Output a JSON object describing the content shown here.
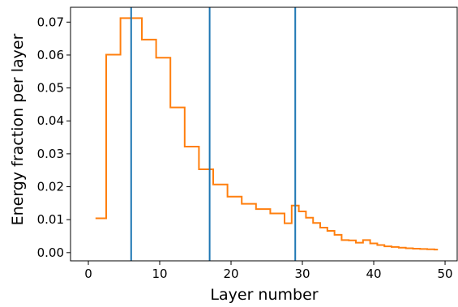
{
  "chart_data": {
    "type": "line",
    "title": "",
    "xlabel": "Layer number",
    "ylabel": "Energy fraction per layer",
    "xlim": [
      -2.5,
      51.7
    ],
    "ylim": [
      -0.0025,
      0.0745
    ],
    "xticks": [
      0,
      10,
      20,
      30,
      40,
      50
    ],
    "xtick_labels": [
      "0",
      "10",
      "20",
      "30",
      "40",
      "50"
    ],
    "yticks": [
      0.0,
      0.01,
      0.02,
      0.03,
      0.04,
      0.05,
      0.06,
      0.07
    ],
    "ytick_labels": [
      "0.00",
      "0.01",
      "0.02",
      "0.03",
      "0.04",
      "0.05",
      "0.06",
      "0.07"
    ],
    "grid": false,
    "series": [
      {
        "color": "#ff7f0e",
        "step": "mid",
        "x": [
          1,
          2,
          3,
          4,
          5,
          6,
          7,
          8,
          9,
          10,
          11,
          12,
          13,
          14,
          15,
          16,
          17,
          18,
          19,
          20,
          21,
          22,
          23,
          24,
          25,
          26,
          27,
          28,
          29,
          30,
          31,
          32,
          33,
          34,
          35,
          36,
          37,
          38,
          39,
          40,
          41,
          42,
          43,
          44,
          45,
          46,
          47,
          48,
          49
        ],
        "y": [
          0.0104,
          0.0104,
          0.0601,
          0.0601,
          0.0712,
          0.0712,
          0.0712,
          0.0647,
          0.0647,
          0.0592,
          0.0592,
          0.0441,
          0.0441,
          0.0322,
          0.0322,
          0.0253,
          0.0253,
          0.0207,
          0.0207,
          0.017,
          0.017,
          0.0148,
          0.0148,
          0.0132,
          0.0132,
          0.0119,
          0.0119,
          0.0089,
          0.0143,
          0.0125,
          0.0106,
          0.009,
          0.0076,
          0.0066,
          0.0054,
          0.0038,
          0.0037,
          0.003,
          0.0038,
          0.0028,
          0.0023,
          0.0019,
          0.0017,
          0.0015,
          0.0013,
          0.0012,
          0.0011,
          0.001,
          0.0009
        ]
      }
    ],
    "vlines": [
      {
        "x": 6,
        "color": "#1f77b4"
      },
      {
        "x": 17,
        "color": "#1f77b4"
      },
      {
        "x": 29,
        "color": "#1f77b4"
      }
    ]
  }
}
